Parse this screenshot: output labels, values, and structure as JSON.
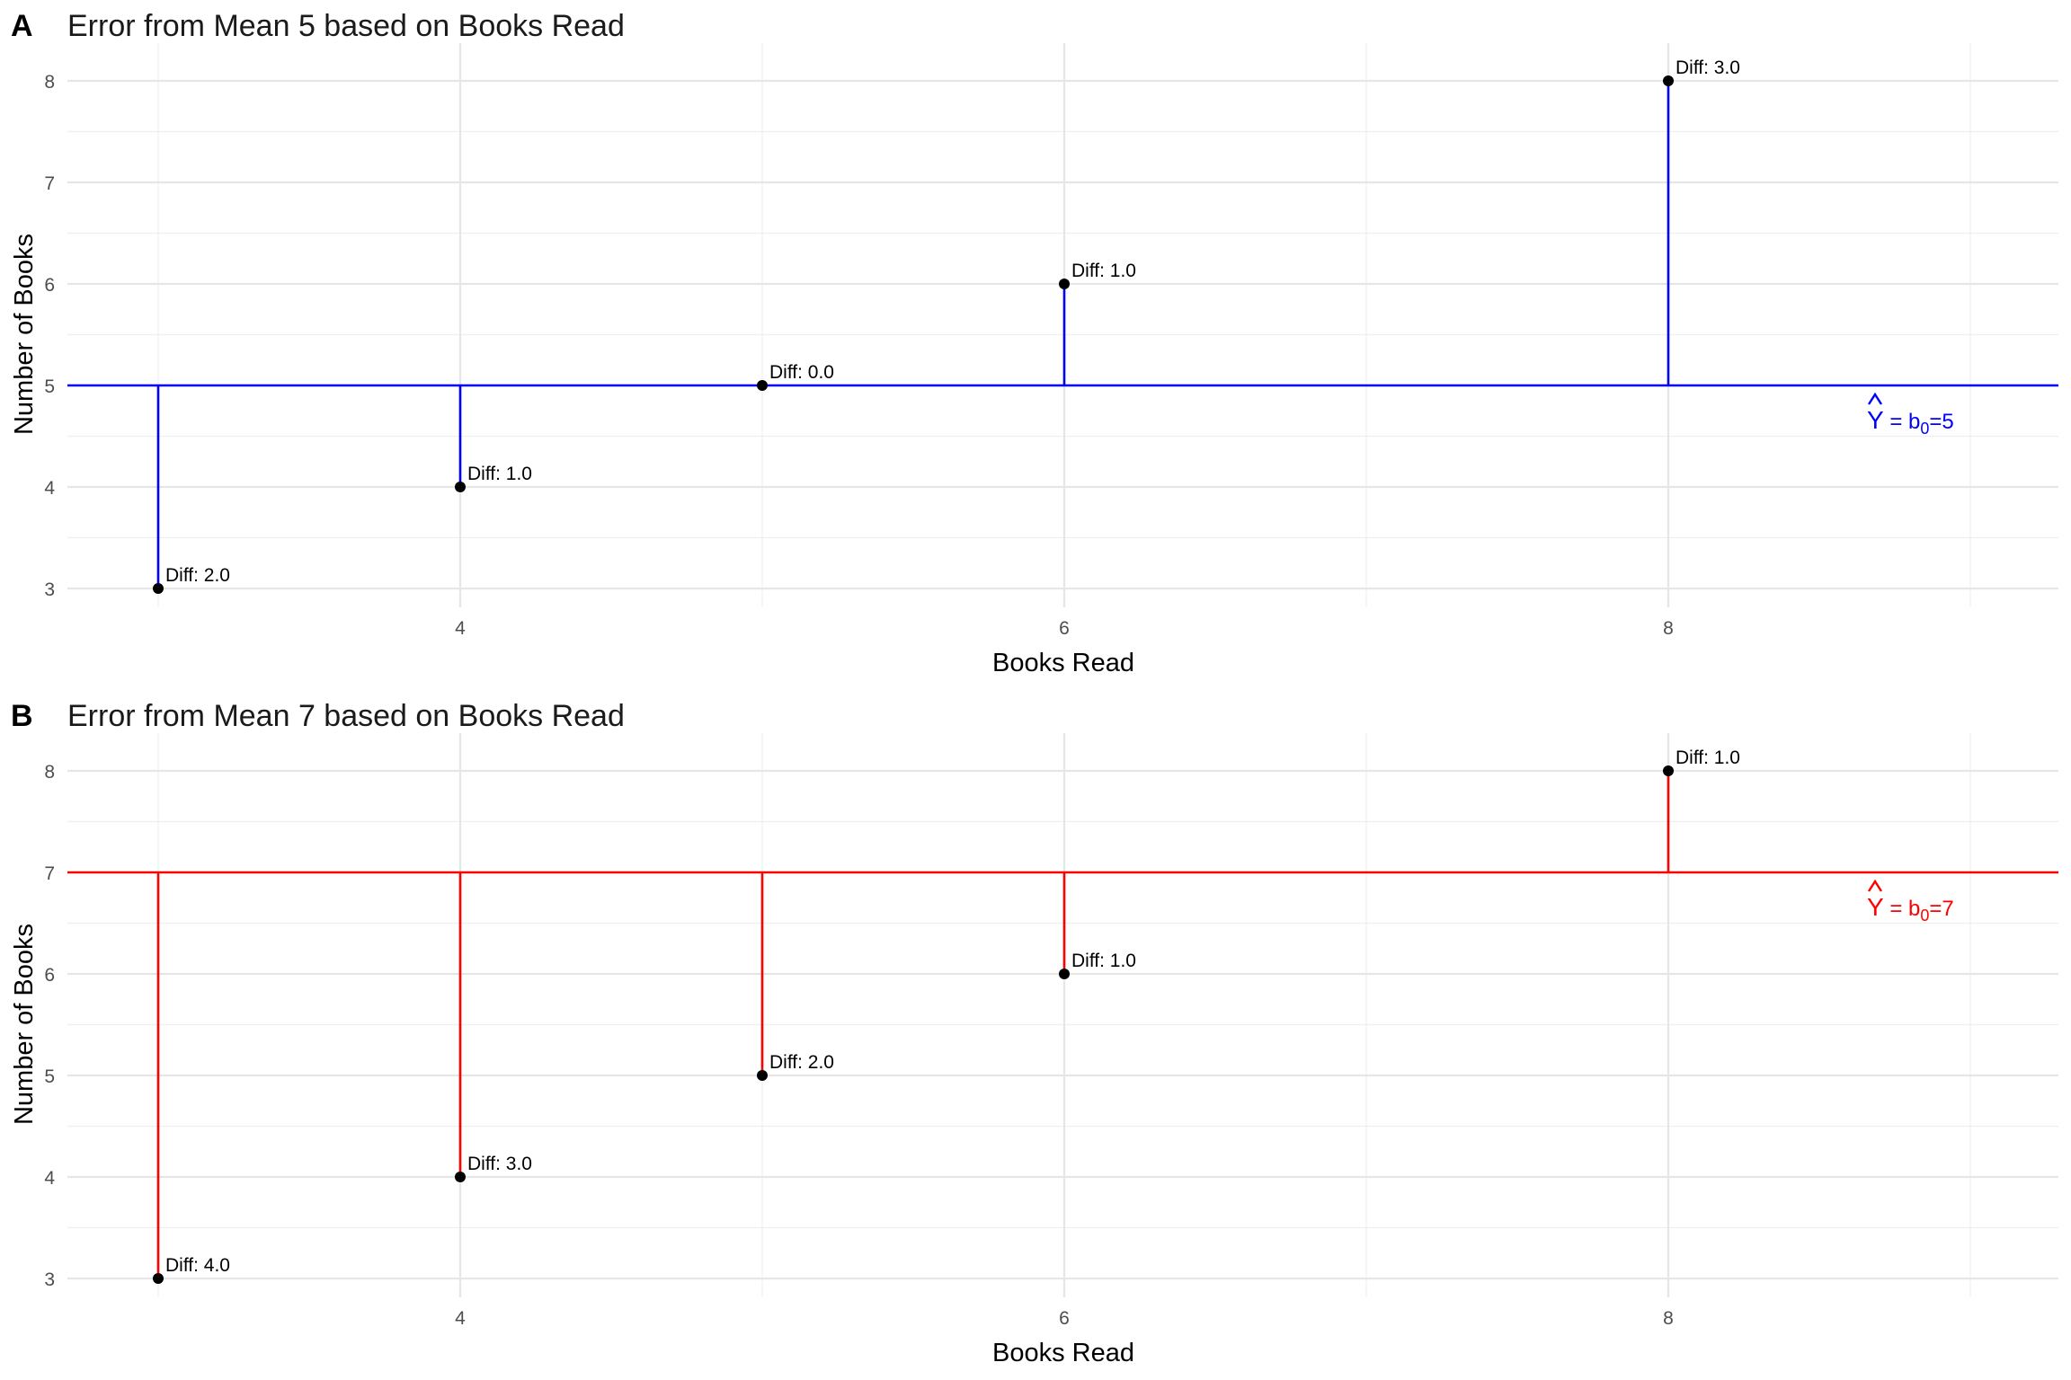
{
  "chart_data": [
    {
      "type": "scatter",
      "tag": "A",
      "title": "Error from Mean 5 based on Books Read",
      "xlabel": "Books Read",
      "ylabel": "Number of Books",
      "x_ticks": [
        4,
        6,
        8
      ],
      "y_ticks": [
        3,
        4,
        5,
        6,
        7,
        8
      ],
      "mean": 5,
      "mean_label": {
        "prefix": "Y",
        "eq": " = b",
        "sub": "0",
        "suffix": "=5"
      },
      "line_color": "#0000ff",
      "points": [
        {
          "x": 3,
          "y": 3,
          "label": "Diff: 2.0"
        },
        {
          "x": 4,
          "y": 4,
          "label": "Diff: 1.0"
        },
        {
          "x": 5,
          "y": 5,
          "label": "Diff: 0.0"
        },
        {
          "x": 6,
          "y": 6,
          "label": "Diff: 1.0"
        },
        {
          "x": 8,
          "y": 8,
          "label": "Diff: 3.0"
        }
      ]
    },
    {
      "type": "scatter",
      "tag": "B",
      "title": "Error from Mean 7 based on Books Read",
      "xlabel": "Books Read",
      "ylabel": "Number of Books",
      "x_ticks": [
        4,
        6,
        8
      ],
      "y_ticks": [
        3,
        4,
        5,
        6,
        7,
        8
      ],
      "mean": 7,
      "mean_label": {
        "prefix": "Y",
        "eq": " = b",
        "sub": "0",
        "suffix": "=7"
      },
      "line_color": "#ff0000",
      "points": [
        {
          "x": 3,
          "y": 3,
          "label": "Diff: 4.0"
        },
        {
          "x": 4,
          "y": 4,
          "label": "Diff: 3.0"
        },
        {
          "x": 5,
          "y": 5,
          "label": "Diff: 2.0"
        },
        {
          "x": 6,
          "y": 6,
          "label": "Diff: 1.0"
        },
        {
          "x": 8,
          "y": 8,
          "label": "Diff: 1.0"
        }
      ]
    }
  ]
}
